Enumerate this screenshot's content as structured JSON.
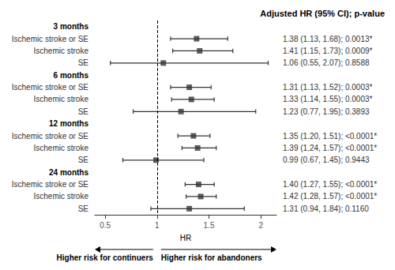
{
  "chart_data": {
    "type": "forest",
    "title": "Adjusted HR (95% CI); p-value",
    "xlabel": "HR",
    "xlim": [
      0.4,
      2.15
    ],
    "xticks": [
      0.5,
      1,
      1.5,
      2
    ],
    "ref_line": 1,
    "grid": false,
    "color": "#333333",
    "arrow_left_label": "Higher risk for continuers",
    "arrow_right_label": "Higher risk for abandoners",
    "groups": [
      {
        "label": "3 months",
        "categories": [
          "Ischemic stroke or SE",
          "Ischemic stroke",
          "SE"
        ],
        "values": [
          1.38,
          1.41,
          1.06
        ],
        "ci_lo": [
          1.13,
          1.15,
          0.55
        ],
        "ci_hi": [
          1.68,
          1.73,
          2.07
        ],
        "annotations": [
          "1.38 (1.13, 1.68); 0.0013*",
          "1.41 (1.15, 1.73); 0.0009*",
          "1.06 (0.55, 2.07); 0.8588"
        ]
      },
      {
        "label": "6 months",
        "categories": [
          "Ischemic stroke or SE",
          "Ischemic stroke",
          "SE"
        ],
        "values": [
          1.31,
          1.33,
          1.23
        ],
        "ci_lo": [
          1.13,
          1.14,
          0.77
        ],
        "ci_hi": [
          1.52,
          1.55,
          1.95
        ],
        "annotations": [
          "1.31 (1.13, 1.52); 0.0003*",
          "1.33 (1.14, 1.55); 0.0003*",
          "1.23 (0.77, 1.95); 0.3893"
        ]
      },
      {
        "label": "12 months",
        "categories": [
          "Ischemic stroke or SE",
          "Ischemic stroke",
          "SE"
        ],
        "values": [
          1.35,
          1.39,
          0.99
        ],
        "ci_lo": [
          1.2,
          1.24,
          0.67
        ],
        "ci_hi": [
          1.51,
          1.57,
          1.45
        ],
        "annotations": [
          "1.35 (1.20, 1.51); <0.0001*",
          "1.39 (1.24, 1.57); <0.0001*",
          "0.99 (0.67, 1.45); 0.9443"
        ]
      },
      {
        "label": "24 months",
        "categories": [
          "Ischemic stroke or SE",
          "Ischemic stroke",
          "SE"
        ],
        "values": [
          1.4,
          1.42,
          1.31
        ],
        "ci_lo": [
          1.27,
          1.28,
          0.94
        ],
        "ci_hi": [
          1.55,
          1.57,
          1.84
        ],
        "annotations": [
          "1.40 (1.27, 1.55); <0.0001*",
          "1.42 (1.28, 1.57); <0.0001*",
          "1.31 (0.94, 1.84); 0.1160"
        ]
      }
    ]
  }
}
